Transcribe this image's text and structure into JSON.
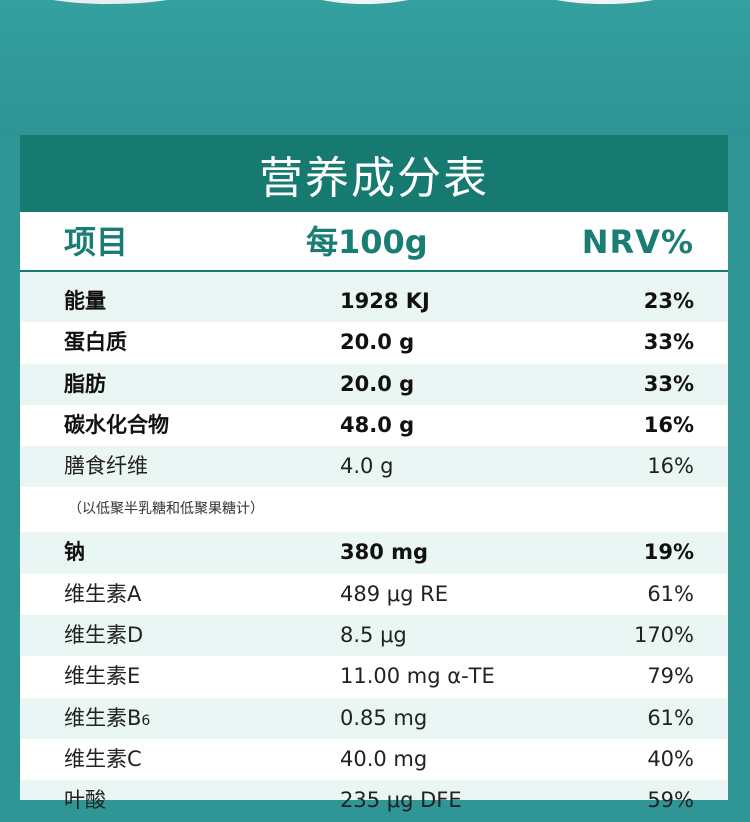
{
  "title": "营养成分表",
  "header": {
    "item": "项目",
    "amount": "每100g",
    "nrv": "NRV%"
  },
  "rows": [
    {
      "name": "能量",
      "amount": "1928 KJ",
      "nrv": "23%",
      "bold": true
    },
    {
      "name": "蛋白质",
      "amount": "20.0 g",
      "nrv": "33%",
      "bold": true
    },
    {
      "name": "脂肪",
      "amount": "20.0 g",
      "nrv": "33%",
      "bold": true
    },
    {
      "name": "碳水化合物",
      "amount": "48.0 g",
      "nrv": "16%",
      "bold": true
    },
    {
      "name": "膳食纤维",
      "amount": "4.0 g",
      "nrv": "16%",
      "bold": false
    },
    {
      "note": "（以低聚半乳糖和低聚果糖计）"
    },
    {
      "name": "钠",
      "amount": "380 mg",
      "nrv": "19%",
      "bold": true
    },
    {
      "name": "维生素A",
      "amount": "489 μg RE",
      "nrv": "61%",
      "bold": false
    },
    {
      "name": "维生素D",
      "amount": "8.5 μg",
      "nrv": "170%",
      "bold": false
    },
    {
      "name": "维生素E",
      "amount": "11.00 mg α-TE",
      "nrv": "79%",
      "bold": false
    },
    {
      "name": "维生素B",
      "name_sub": "6",
      "amount": "0.85 mg",
      "nrv": "61%",
      "bold": false
    },
    {
      "name": "维生素C",
      "amount": "40.0 mg",
      "nrv": "40%",
      "bold": false
    },
    {
      "name": "叶酸",
      "amount": "235 μg DFE",
      "nrv": "59%",
      "bold": false
    }
  ]
}
